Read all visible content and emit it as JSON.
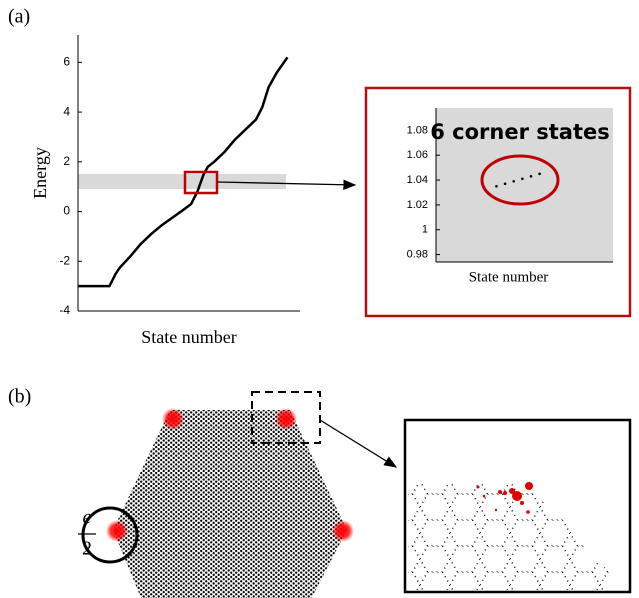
{
  "panel_labels": [
    "(a)",
    "(b)"
  ],
  "fraction": {
    "numerator": "e",
    "denominator": "2"
  },
  "chart_data": [
    {
      "type": "line",
      "xlabel": "State number",
      "ylabel": "Energy",
      "x": [
        0,
        5,
        10,
        15,
        18,
        20,
        25,
        30,
        35,
        40,
        45,
        50,
        54,
        57,
        60,
        62,
        65,
        70,
        75,
        80,
        85,
        88,
        91,
        95,
        100
      ],
      "series": [
        {
          "color": "#000000",
          "values": [
            -3,
            -3,
            -3,
            -3,
            -2.5,
            -2.25,
            -1.8,
            -1.3,
            -0.9,
            -0.55,
            -0.25,
            0.05,
            0.3,
            0.8,
            1.5,
            1.8,
            2.0,
            2.4,
            2.9,
            3.3,
            3.7,
            4.2,
            5.0,
            5.6,
            6.2
          ]
        }
      ],
      "xlim": [
        0,
        106
      ],
      "ylim": [
        -4,
        7.1
      ],
      "yticks": [
        -4,
        -2,
        0,
        2,
        4,
        6
      ]
    },
    {
      "type": "scatter",
      "title": "6 corner states",
      "xlabel": "State number",
      "x": [
        1,
        2,
        3,
        4,
        5,
        6
      ],
      "series": [
        {
          "color": "#000000",
          "values": [
            1.035,
            1.037,
            1.039,
            1.041,
            1.043,
            1.045
          ]
        }
      ],
      "xlim": [
        -6,
        14.5
      ],
      "ylim": [
        0.974,
        1.098
      ],
      "yticks": [
        0.98,
        1,
        1.02,
        1.04,
        1.06,
        1.08
      ]
    }
  ]
}
